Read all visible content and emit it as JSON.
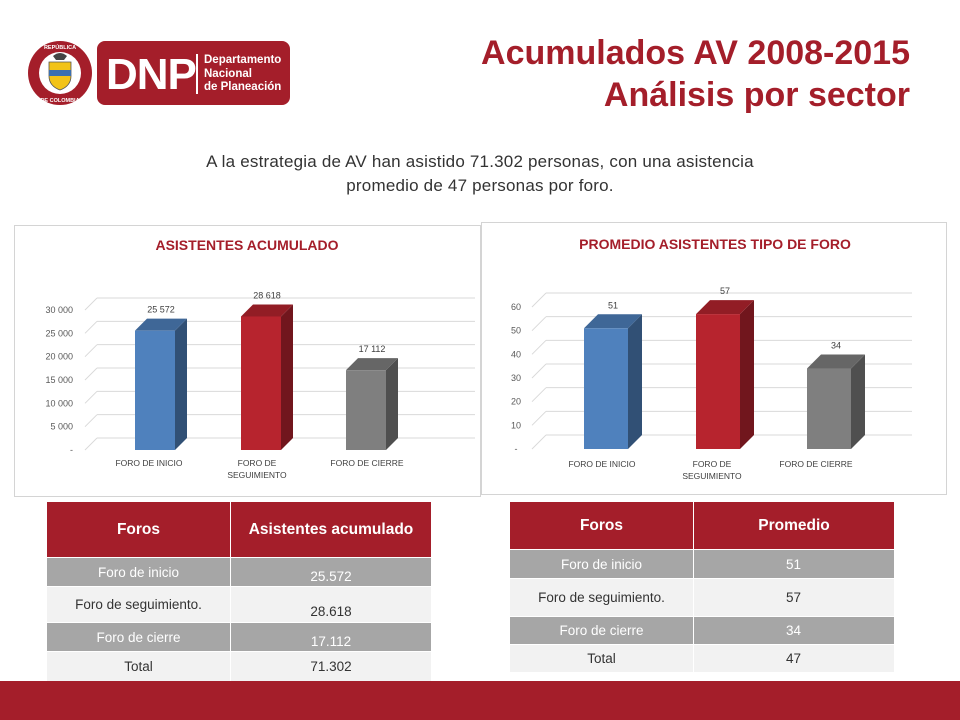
{
  "header": {
    "logo_text": "DNP",
    "logo_subtitle": [
      "Departamento",
      "Nacional",
      "de Planeación"
    ],
    "seal_text_top": "REPÚBLICA",
    "seal_text_bottom": "DE COLOMBIA",
    "title_line1": "Acumulados AV 2008-2015",
    "title_line2": "Análisis por sector"
  },
  "intro": {
    "line1": "A la estrategia de AV han asistido 71.302 personas, con una asistencia",
    "line2": "promedio de 47 personas por foro."
  },
  "colors": {
    "brand": "#a41e2a",
    "blue": "#4f81bd",
    "red": "#b7242e",
    "gray": "#7f7f7f"
  },
  "chart_data": [
    {
      "type": "bar",
      "title": "ASISTENTES ACUMULADO",
      "categories": [
        "FORO DE INICIO",
        "FORO DE SEGUIMIENTO",
        "FORO DE CIERRE"
      ],
      "category_lines": [
        [
          "FORO DE INICIO"
        ],
        [
          "FORO DE",
          "SEGUIMIENTO"
        ],
        [
          "FORO DE CIERRE"
        ]
      ],
      "values": [
        25572,
        28618,
        17112
      ],
      "data_labels": [
        "25 572",
        "28 618",
        "17 112"
      ],
      "bar_colors": [
        "#4f81bd",
        "#b7242e",
        "#7f7f7f"
      ],
      "ylim": [
        0,
        30000
      ],
      "yticks": [
        0,
        5000,
        10000,
        15000,
        20000,
        25000,
        30000
      ],
      "ytick_labels": [
        "-",
        "5 000",
        "10 000",
        "15 000",
        "20 000",
        "25 000",
        "30 000"
      ],
      "grid": true,
      "style": "3d-column"
    },
    {
      "type": "bar",
      "title": "PROMEDIO ASISTENTES TIPO DE FORO",
      "categories": [
        "FORO DE INICIO",
        "FORO DE SEGUIMIENTO",
        "FORO DE CIERRE"
      ],
      "category_lines": [
        [
          "FORO DE INICIO"
        ],
        [
          "FORO DE",
          "SEGUIMIENTO"
        ],
        [
          "FORO DE CIERRE"
        ]
      ],
      "values": [
        51,
        57,
        34
      ],
      "data_labels": [
        "51",
        "57",
        "34"
      ],
      "bar_colors": [
        "#4f81bd",
        "#b7242e",
        "#7f7f7f"
      ],
      "ylim": [
        0,
        60
      ],
      "yticks": [
        0,
        10,
        20,
        30,
        40,
        50,
        60
      ],
      "ytick_labels": [
        "-",
        "10",
        "20",
        "30",
        "40",
        "50",
        "60"
      ],
      "grid": true,
      "style": "3d-column"
    }
  ],
  "table_acumulado": {
    "headers": [
      "Foros",
      "Asistentes acumulado"
    ],
    "rows": [
      [
        "Foro de inicio",
        "25.572"
      ],
      [
        "Foro de seguimiento.",
        "28.618"
      ],
      [
        "Foro de cierre",
        "17.112"
      ],
      [
        "Total",
        "71.302"
      ]
    ]
  },
  "table_promedio": {
    "headers": [
      "Foros",
      "Promedio"
    ],
    "rows": [
      [
        "Foro de inicio",
        "51"
      ],
      [
        "Foro de seguimiento.",
        "57"
      ],
      [
        "Foro de cierre",
        "34"
      ],
      [
        "Total",
        "47"
      ]
    ]
  }
}
